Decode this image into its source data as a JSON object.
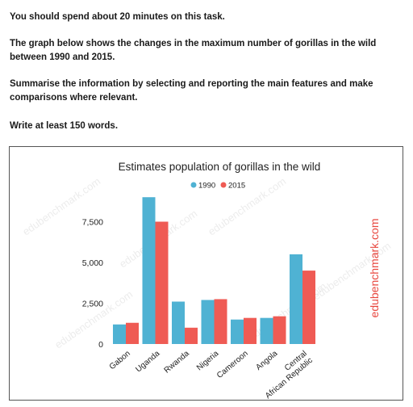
{
  "prompt": {
    "line1": "You should spend about 20 minutes on this task.",
    "line2": "The graph below shows the changes in the maximum number of gorillas in the wild between 1990 and 2015.",
    "line3": "Summarise the information by selecting and reporting the main features and make comparisons where relevant.",
    "line4": "Write at least 150 words."
  },
  "watermark": "edubenchmark.com",
  "chart_data": {
    "type": "bar",
    "title": "Estimates population of gorillas in the wild",
    "categories": [
      "Gabon",
      "Uganda",
      "Rwanda",
      "Nigeria",
      "Cameroon",
      "Angola",
      "Central African Republic"
    ],
    "series": [
      {
        "name": "1990",
        "color": "#4fb2d3",
        "values": [
          1200,
          9000,
          2600,
          2700,
          1500,
          1600,
          5500
        ]
      },
      {
        "name": "2015",
        "color": "#ef5b54",
        "values": [
          1300,
          7500,
          1000,
          2750,
          1600,
          1700,
          4500
        ]
      }
    ],
    "yticks": [
      0,
      2500,
      5000,
      7500
    ],
    "ytick_labels": [
      "0",
      "2,500",
      "5,000",
      "7,500"
    ],
    "ylim": [
      0,
      9500
    ],
    "legend": "top-center",
    "grid": false
  }
}
